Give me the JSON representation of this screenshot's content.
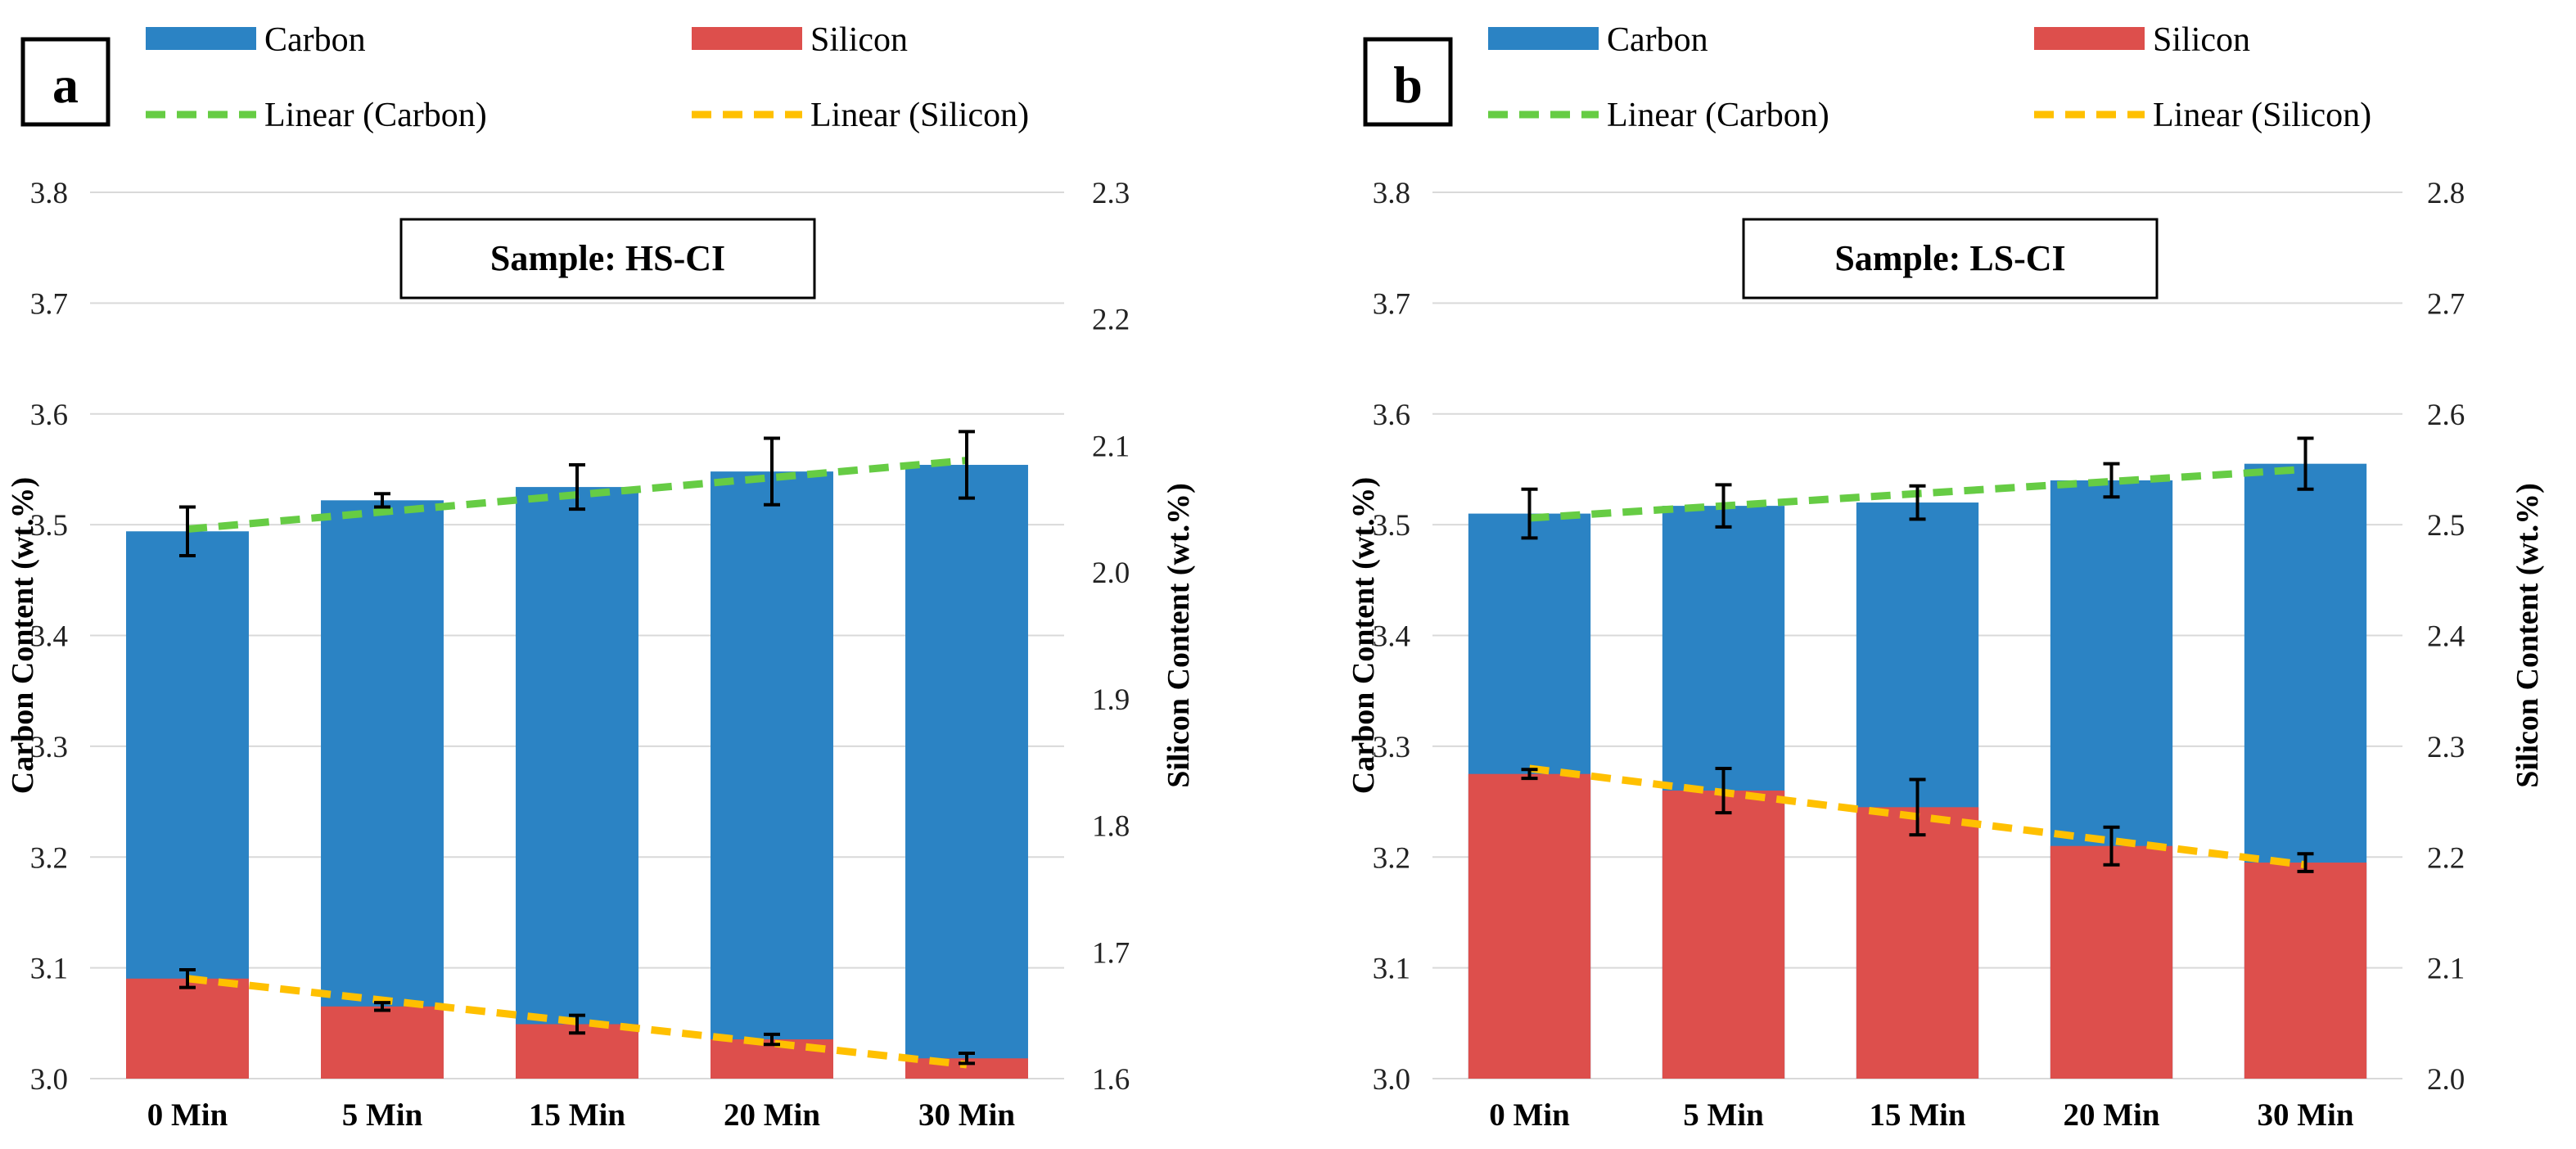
{
  "legend": {
    "carbon": "Carbon",
    "silicon": "Silicon",
    "linear_carbon": "Linear (Carbon)",
    "linear_silicon": "Linear (Silicon)"
  },
  "colors": {
    "carbon_bar": "#2b83c4",
    "silicon_bar": "#dd4f4c",
    "carbon_trend": "#66cc44",
    "silicon_trend": "#ffc000",
    "grid": "#d9d9d9",
    "error_bar": "#000000"
  },
  "chart_data": [
    {
      "type": "bar",
      "panel_label": "a",
      "sample_label": "Sample: HS-CI",
      "categories": [
        "0 Min",
        "5 Min",
        "15 Min",
        "20 Min",
        "30 Min"
      ],
      "ylabel": "Carbon Content (wt.%)",
      "ylabel2": "Silicon Content (wt.%)",
      "ylim": [
        3.0,
        3.8
      ],
      "ylim2": [
        1.6,
        2.3
      ],
      "yticks": [
        "3.0",
        "3.1",
        "3.2",
        "3.3",
        "3.4",
        "3.5",
        "3.6",
        "3.7",
        "3.8"
      ],
      "yticks2": [
        "1.6",
        "1.7",
        "1.8",
        "1.9",
        "2.0",
        "2.1",
        "2.2",
        "2.3"
      ],
      "series": [
        {
          "name": "Carbon",
          "axis": "left",
          "values": [
            3.494,
            3.522,
            3.534,
            3.548,
            3.554
          ],
          "errors": [
            0.022,
            0.006,
            0.02,
            0.03,
            0.03
          ]
        },
        {
          "name": "Silicon",
          "axis": "right",
          "values": [
            1.679,
            1.657,
            1.643,
            1.631,
            1.616
          ],
          "errors": [
            0.007,
            0.003,
            0.007,
            0.004,
            0.004
          ]
        }
      ],
      "trendlines": [
        {
          "name": "Linear (Carbon)",
          "axis": "left",
          "start": 3.496,
          "end": 3.558
        },
        {
          "name": "Linear (Silicon)",
          "axis": "right",
          "start": 1.679,
          "end": 1.611
        }
      ]
    },
    {
      "type": "bar",
      "panel_label": "b",
      "sample_label": "Sample: LS-CI",
      "categories": [
        "0 Min",
        "5 Min",
        "15 Min",
        "20 Min",
        "30 Min"
      ],
      "ylabel": "Carbon Content (wt.%)",
      "ylabel2": "Silicon Content (wt.%)",
      "ylim": [
        3.0,
        3.8
      ],
      "ylim2": [
        2.0,
        2.8
      ],
      "yticks": [
        "3.0",
        "3.1",
        "3.2",
        "3.3",
        "3.4",
        "3.5",
        "3.6",
        "3.7",
        "3.8"
      ],
      "yticks2": [
        "2.0",
        "2.1",
        "2.2",
        "2.3",
        "2.4",
        "2.5",
        "2.6",
        "2.7",
        "2.8"
      ],
      "series": [
        {
          "name": "Carbon",
          "axis": "left",
          "values": [
            3.51,
            3.517,
            3.52,
            3.54,
            3.555
          ],
          "errors": [
            0.022,
            0.019,
            0.015,
            0.015,
            0.023
          ]
        },
        {
          "name": "Silicon",
          "axis": "right",
          "values": [
            2.275,
            2.26,
            2.245,
            2.21,
            2.195
          ],
          "errors": [
            0.004,
            0.02,
            0.025,
            0.017,
            0.008
          ]
        }
      ],
      "trendlines": [
        {
          "name": "Linear (Carbon)",
          "axis": "left",
          "start": 3.506,
          "end": 3.55
        },
        {
          "name": "Linear (Silicon)",
          "axis": "right",
          "start": 2.28,
          "end": 2.193
        }
      ]
    }
  ]
}
